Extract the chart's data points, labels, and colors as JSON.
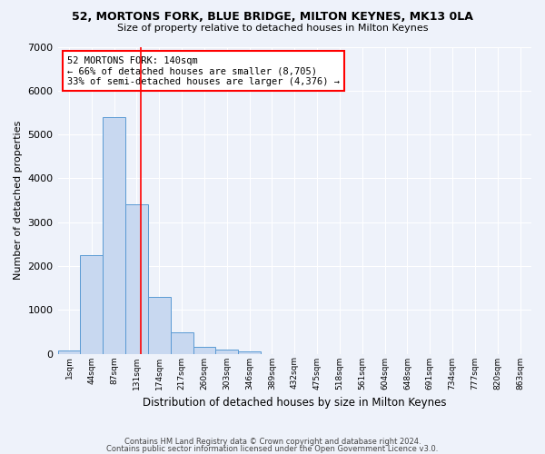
{
  "title1": "52, MORTONS FORK, BLUE BRIDGE, MILTON KEYNES, MK13 0LA",
  "title2": "Size of property relative to detached houses in Milton Keynes",
  "xlabel": "Distribution of detached houses by size in Milton Keynes",
  "ylabel": "Number of detached properties",
  "bin_labels": [
    "1sqm",
    "44sqm",
    "87sqm",
    "131sqm",
    "174sqm",
    "217sqm",
    "260sqm",
    "303sqm",
    "346sqm",
    "389sqm",
    "432sqm",
    "475sqm",
    "518sqm",
    "561sqm",
    "604sqm",
    "648sqm",
    "691sqm",
    "734sqm",
    "777sqm",
    "820sqm",
    "863sqm"
  ],
  "bar_heights": [
    80,
    2250,
    5400,
    3400,
    1300,
    480,
    150,
    100,
    50,
    0,
    0,
    0,
    0,
    0,
    0,
    0,
    0,
    0,
    0,
    0,
    0
  ],
  "bar_color": "#c8d8f0",
  "bar_edge_color": "#5a9ad4",
  "red_line_x": 3.2,
  "annotation_text": "52 MORTONS FORK: 140sqm\n← 66% of detached houses are smaller (8,705)\n33% of semi-detached houses are larger (4,376) →",
  "annotation_box_color": "white",
  "annotation_box_edge": "red",
  "ylim": [
    0,
    7000
  ],
  "yticks": [
    0,
    1000,
    2000,
    3000,
    4000,
    5000,
    6000,
    7000
  ],
  "footer1": "Contains HM Land Registry data © Crown copyright and database right 2024.",
  "footer2": "Contains public sector information licensed under the Open Government Licence v3.0.",
  "background_color": "#eef2fa",
  "grid_color": "#ffffff"
}
